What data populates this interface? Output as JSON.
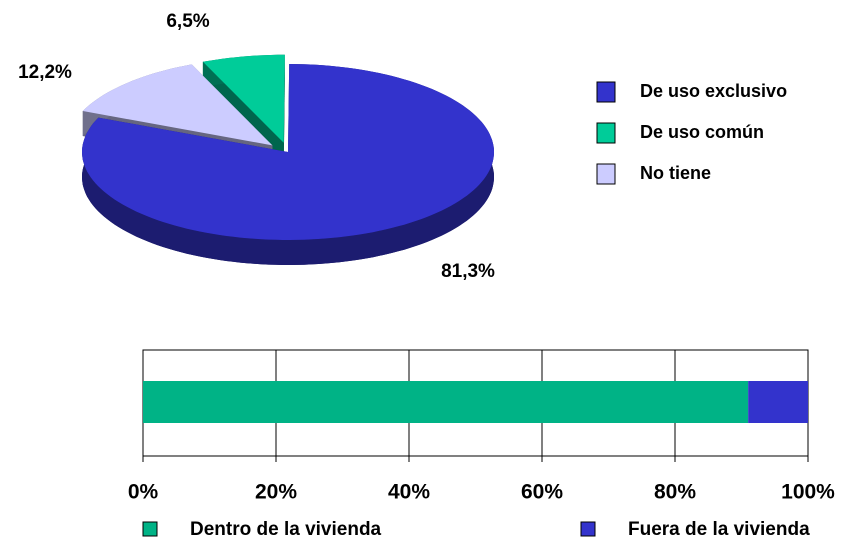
{
  "chart_data": [
    {
      "type": "pie",
      "categories": [
        "De uso exclusivo",
        "De uso común",
        "No tiene"
      ],
      "values": [
        81.3,
        6.5,
        12.2
      ],
      "value_labels": [
        "81,3%",
        "6,5%",
        "12,2%"
      ],
      "colors": [
        "#3333cc",
        "#00cc99",
        "#ccccff"
      ],
      "explode": [
        false,
        true,
        true
      ],
      "legend": "right"
    },
    {
      "type": "stacked_bar_horizontal",
      "series": [
        {
          "name": "Dentro de la vivienda",
          "color": "#00b386",
          "values": [
            91
          ]
        },
        {
          "name": "Fuera de la vivienda",
          "color": "#3333cc",
          "values": [
            9
          ]
        }
      ],
      "xlim": [
        0,
        100
      ],
      "xticks": [
        {
          "value": 0,
          "label": "0%"
        },
        {
          "value": 20,
          "label": "20%"
        },
        {
          "value": 40,
          "label": "40%"
        },
        {
          "value": 60,
          "label": "60%"
        },
        {
          "value": 80,
          "label": "80%"
        },
        {
          "value": 100,
          "label": "100%"
        }
      ],
      "grid": true,
      "legend": "bottom"
    }
  ]
}
